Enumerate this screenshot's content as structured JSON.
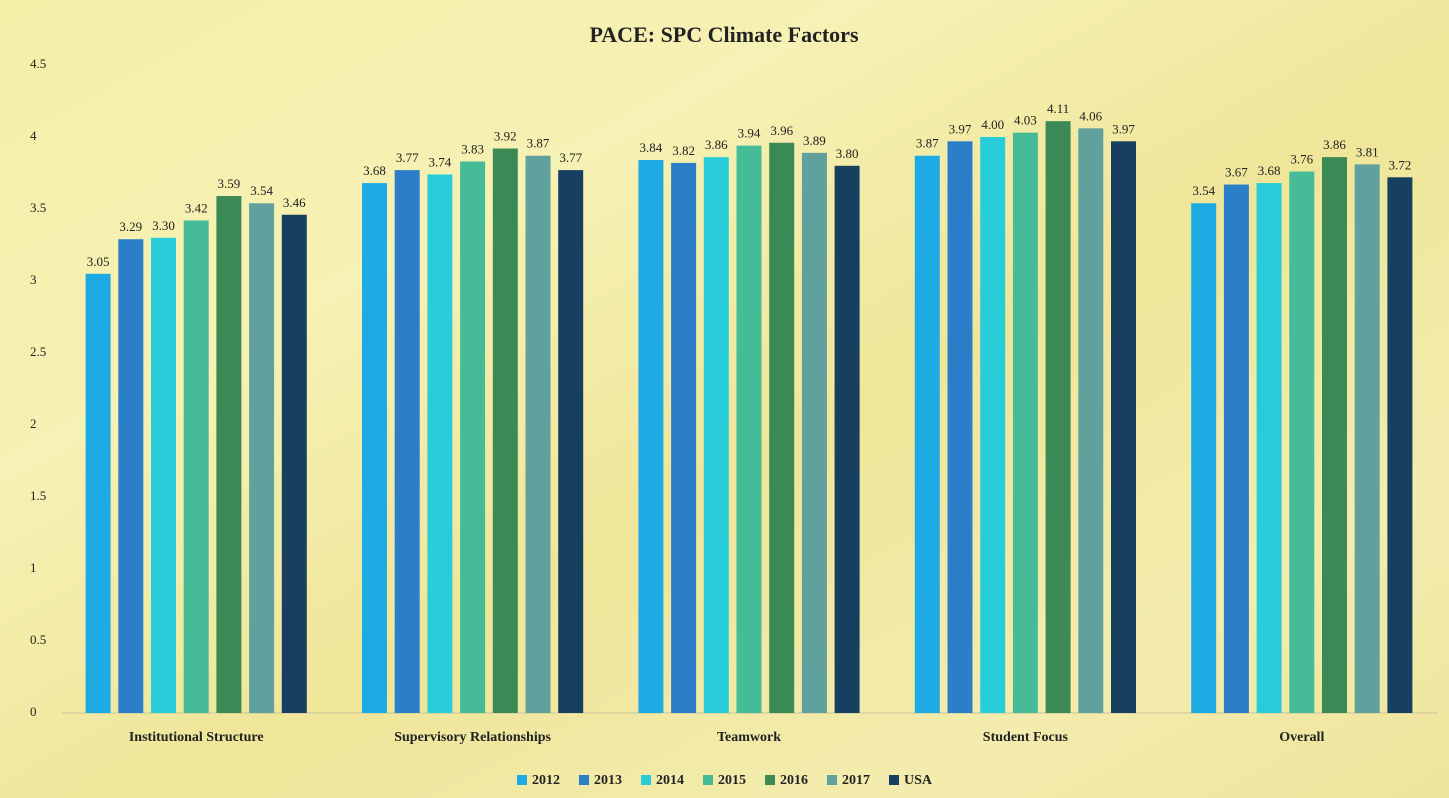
{
  "chart_data": {
    "type": "bar",
    "title": "PACE: SPC Climate Factors",
    "categories": [
      "Institutional Structure",
      "Supervisory Relationships",
      "Teamwork",
      "Student Focus",
      "Overall"
    ],
    "series": [
      {
        "name": "2012",
        "color": "#1eaae3",
        "values": [
          3.05,
          3.68,
          3.84,
          3.87,
          3.54
        ],
        "value_labels": [
          "3.05",
          "3.68",
          "3.84",
          "3.87",
          "3.54"
        ]
      },
      {
        "name": "2013",
        "color": "#2a7fc8",
        "values": [
          3.29,
          3.77,
          3.82,
          3.97,
          3.67
        ],
        "value_labels": [
          "3.29",
          "3.77",
          "3.82",
          "3.97",
          "3.67"
        ]
      },
      {
        "name": "2014",
        "color": "#28cdd9",
        "values": [
          3.3,
          3.74,
          3.86,
          4.0,
          3.68
        ],
        "value_labels": [
          "3.30",
          "3.74",
          "3.86",
          "4.00",
          "3.68"
        ]
      },
      {
        "name": "2015",
        "color": "#45bb97",
        "values": [
          3.42,
          3.83,
          3.94,
          4.03,
          3.76
        ],
        "value_labels": [
          "3.42",
          "3.83",
          "3.94",
          "4.03",
          "3.76"
        ]
      },
      {
        "name": "2016",
        "color": "#3b8a55",
        "values": [
          3.59,
          3.92,
          3.96,
          4.11,
          3.86
        ],
        "value_labels": [
          "3.59",
          "3.92",
          "3.96",
          "4.11",
          "3.86"
        ]
      },
      {
        "name": "2017",
        "color": "#60a19d",
        "values": [
          3.54,
          3.87,
          3.89,
          4.06,
          3.81
        ],
        "value_labels": [
          "3.54",
          "3.87",
          "3.89",
          "4.06",
          "3.81"
        ]
      },
      {
        "name": "USA",
        "color": "#163f60",
        "values": [
          3.46,
          3.77,
          3.8,
          3.97,
          3.72
        ],
        "value_labels": [
          "3.46",
          "3.77",
          "3.80",
          "3.97",
          "3.72"
        ]
      }
    ],
    "ylim": [
      0,
      4.5
    ],
    "yticks": [
      0,
      0.5,
      1,
      1.5,
      2,
      2.5,
      3,
      3.5,
      4,
      4.5
    ],
    "grid": false,
    "legend": "bottom"
  }
}
